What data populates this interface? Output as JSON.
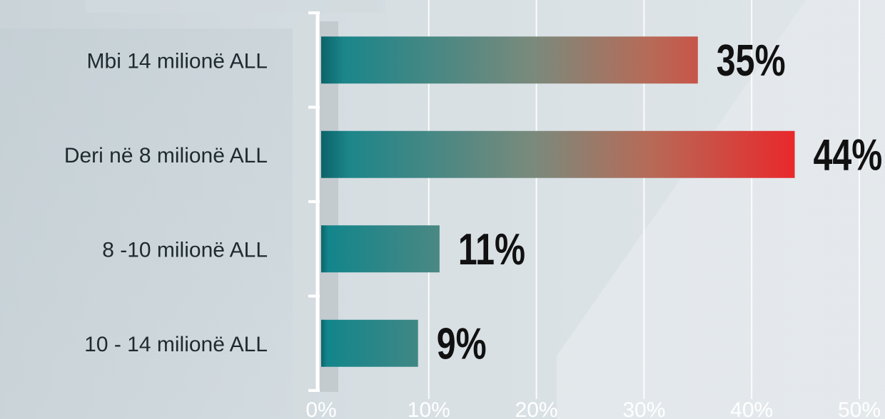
{
  "chart_data": {
    "type": "bar",
    "orientation": "horizontal",
    "categories": [
      "Mbi 14 milionë ALL",
      "Deri në 8 milionë ALL",
      "8 -10 milionë ALL",
      "10 - 14 milionë ALL"
    ],
    "values": [
      35,
      44,
      11,
      9
    ],
    "value_labels": [
      "35%",
      "44%",
      "11%",
      "9%"
    ],
    "x_ticks": [
      "0%",
      "10%",
      "20%",
      "30%",
      "40%",
      "50%"
    ],
    "xlim": [
      0,
      50
    ],
    "grid": true,
    "colors": {
      "bar_start": "#0f858c",
      "bar_end": "#e8292c",
      "grid": "#ffffff",
      "axis": "#ffffff"
    }
  }
}
